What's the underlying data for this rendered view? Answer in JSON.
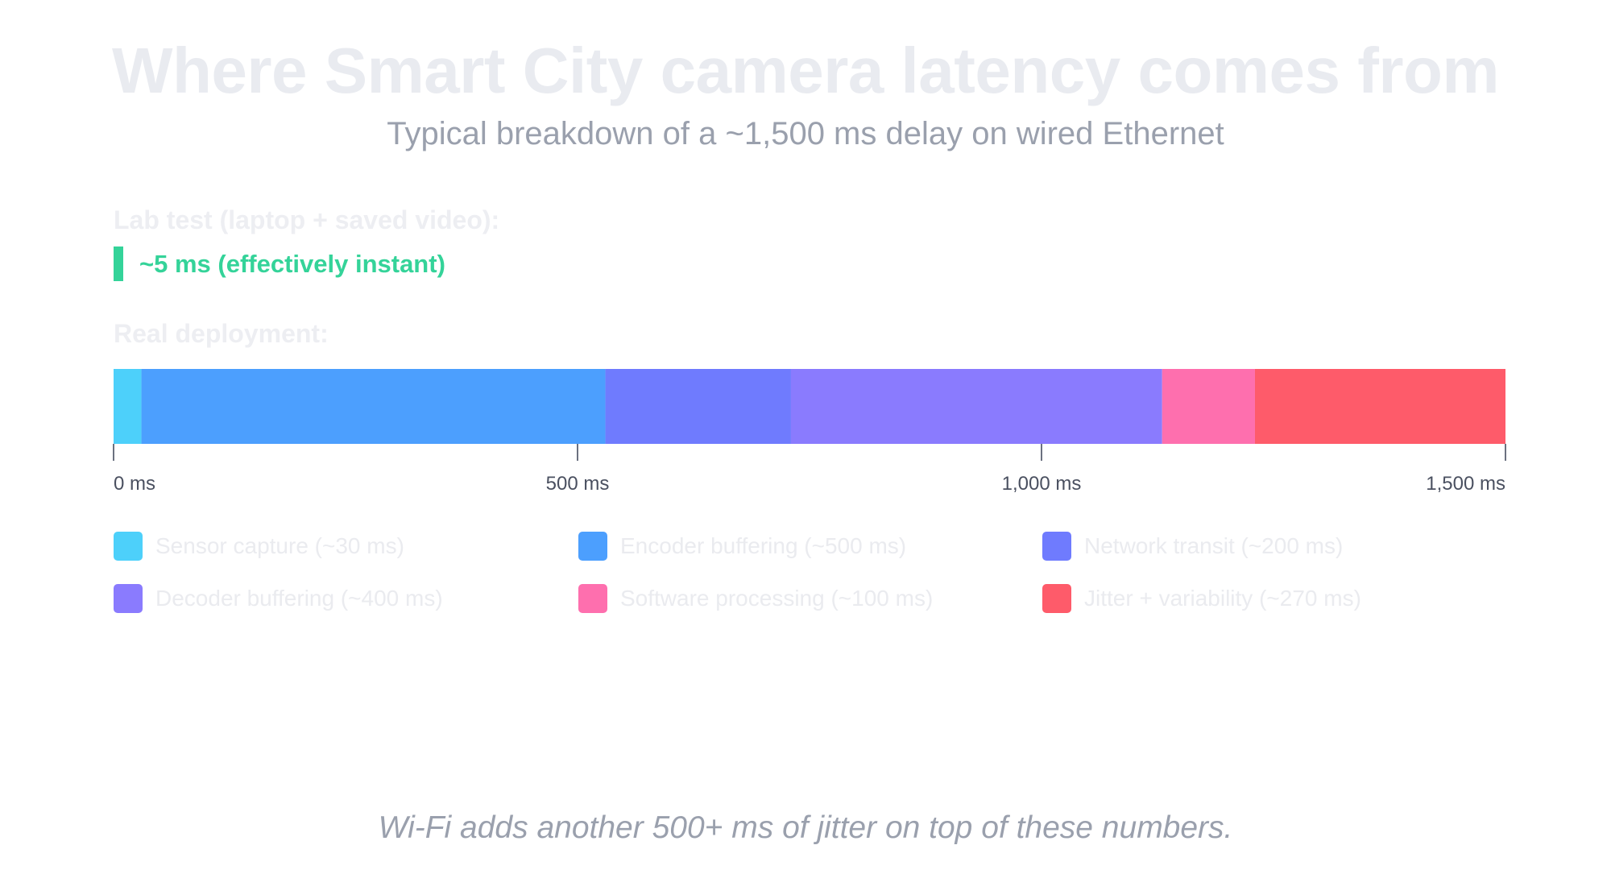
{
  "title": "Where Smart City camera latency comes from",
  "subtitle": "Typical breakdown of a ~1,500 ms delay on wired Ethernet",
  "lab": {
    "label": "Lab test (laptop + saved video):",
    "value_text": "~5 ms (effectively instant)",
    "value_ms": 5,
    "color": "#34d399"
  },
  "deployment": {
    "label": "Real deployment:"
  },
  "footnote": "Wi-Fi adds another 500+ ms of jitter on top of these numbers.",
  "chart_data": {
    "type": "bar",
    "orientation": "horizontal-stacked",
    "unit": "ms",
    "xlim": [
      0,
      1500
    ],
    "ticks": [
      {
        "value": 0,
        "label": "0 ms"
      },
      {
        "value": 500,
        "label": "500 ms"
      },
      {
        "value": 1000,
        "label": "1,000 ms"
      },
      {
        "value": 1500,
        "label": "1,500 ms"
      }
    ],
    "series": [
      {
        "name": "Sensor capture (~30 ms)",
        "value": 30,
        "color": "#4dd0fa"
      },
      {
        "name": "Encoder buffering (~500 ms)",
        "value": 500,
        "color": "#4c9ffe"
      },
      {
        "name": "Network transit (~200 ms)",
        "value": 200,
        "color": "#6f7bfe"
      },
      {
        "name": "Decoder buffering (~400 ms)",
        "value": 400,
        "color": "#8a7bfe"
      },
      {
        "name": "Software processing (~100 ms)",
        "value": 100,
        "color": "#fe6fae"
      },
      {
        "name": "Jitter + variability (~270 ms)",
        "value": 270,
        "color": "#fe5b6a"
      }
    ],
    "legend_position": "bottom"
  }
}
